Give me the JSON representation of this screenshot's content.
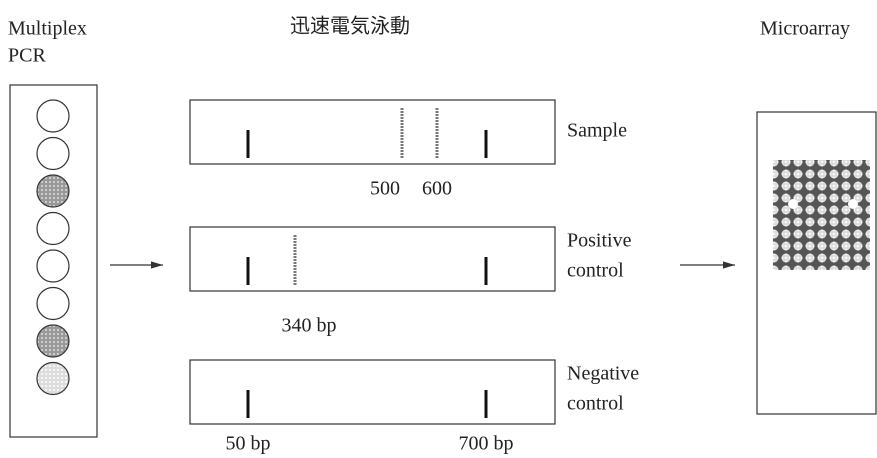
{
  "pcr": {
    "title_lines": [
      "Multiplex",
      "PCR"
    ]
  },
  "electrophoresis": {
    "title": "迅速電気泳動",
    "gels": [
      {
        "label_lines": [
          "Sample"
        ],
        "band_labels": [
          "500",
          "600"
        ]
      },
      {
        "label_lines": [
          "Positive",
          "control"
        ],
        "band_labels": [
          "340 bp"
        ]
      },
      {
        "label_lines": [
          "Negative",
          "control"
        ],
        "band_labels": [
          "50 bp",
          "700 bp"
        ]
      }
    ]
  },
  "microarray": {
    "title": "Microarray"
  }
}
